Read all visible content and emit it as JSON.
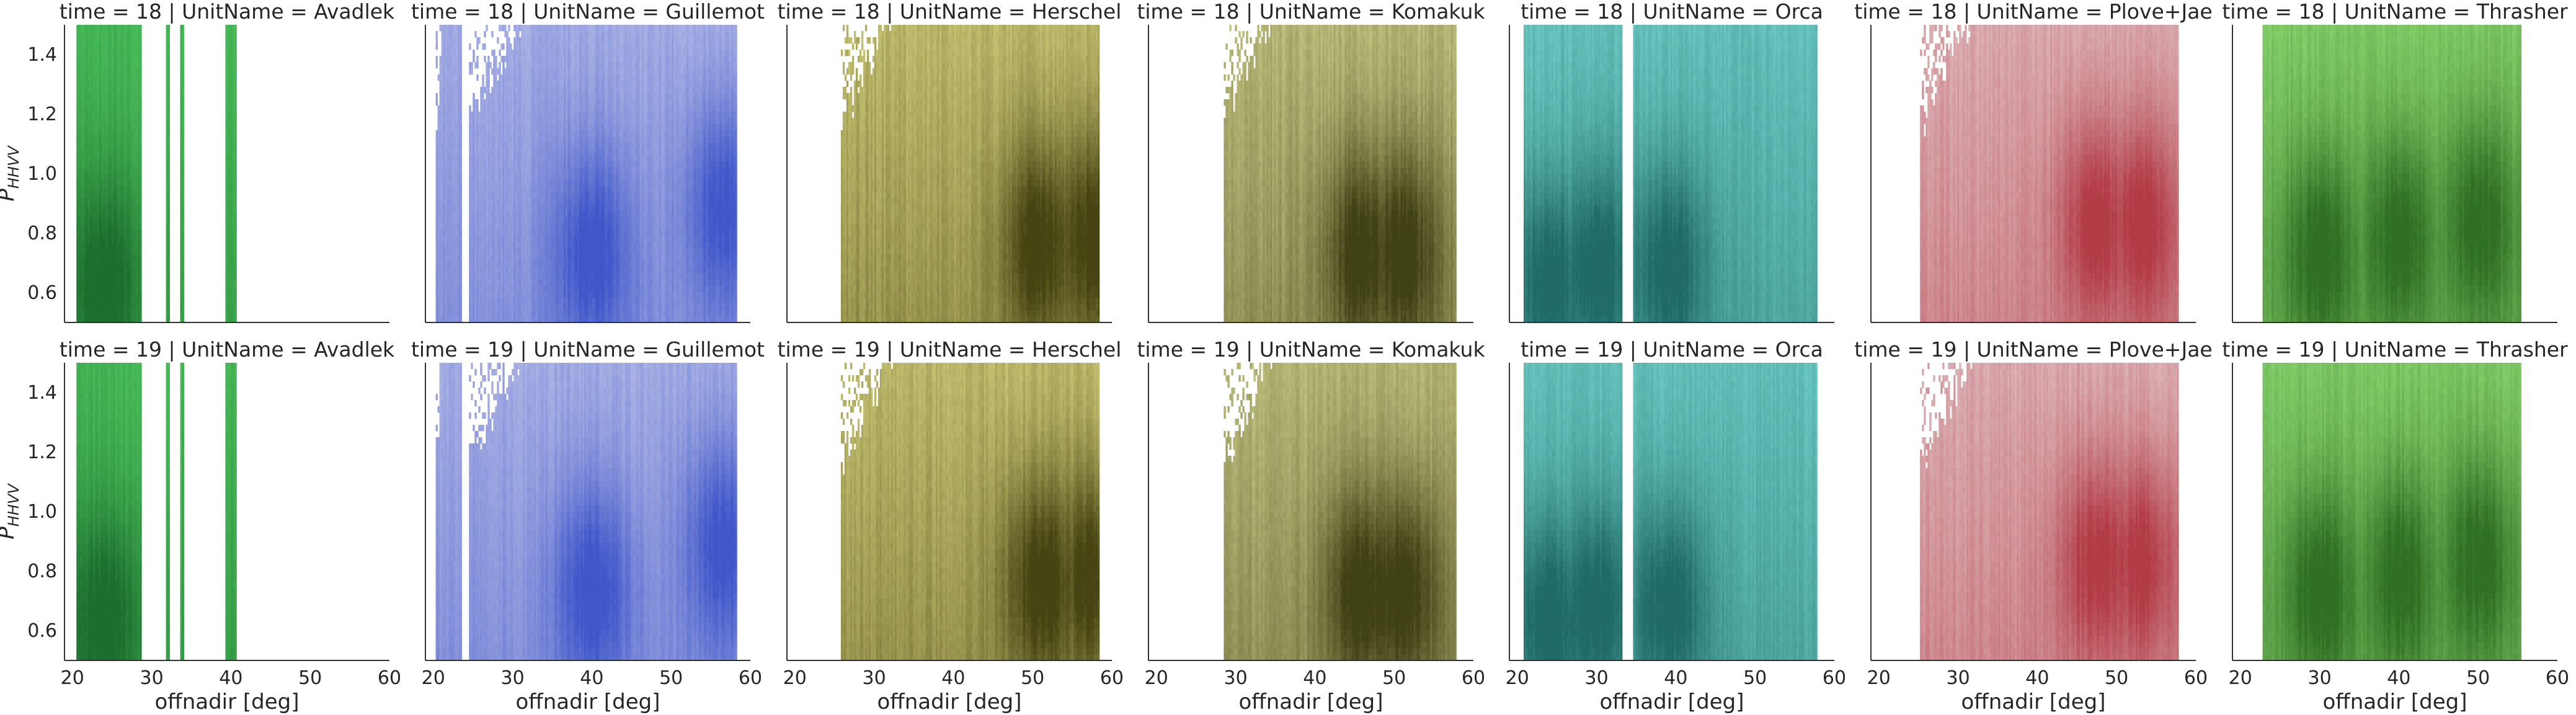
{
  "chart_data": {
    "type": "heatmap",
    "rows": [
      18,
      19
    ],
    "columns": [
      "Avadlek",
      "Guillemot",
      "Herschel",
      "Komakuk",
      "Orca",
      "Plove+Jae",
      "Thrasher"
    ],
    "panel_titles": [
      [
        "time = 18 | UnitName = Avadlek",
        "time = 18 | UnitName = Guillemot",
        "time = 18 | UnitName = Herschel",
        "time = 18 | UnitName = Komakuk",
        "time = 18 | UnitName = Orca",
        "time = 18 | UnitName = Plove+Jae",
        "time = 18 | UnitName = Thrasher"
      ],
      [
        "time = 19 | UnitName = Avadlek",
        "time = 19 | UnitName = Guillemot",
        "time = 19 | UnitName = Herschel",
        "time = 19 | UnitName = Komakuk",
        "time = 19 | UnitName = Orca",
        "time = 19 | UnitName = Plove+Jae",
        "time = 19 | UnitName = Thrasher"
      ]
    ],
    "xlabel": "offnadir [deg]",
    "ylabel": "P",
    "ylabel_subscript": "HHVV",
    "xlim": [
      19,
      60
    ],
    "ylim": [
      0.5,
      1.5
    ],
    "xticks": [
      20,
      30,
      40,
      50,
      60
    ],
    "yticks": [
      0.6,
      0.8,
      1.0,
      1.2,
      1.4
    ],
    "xtick_labels": [
      "20",
      "30",
      "40",
      "50",
      "60"
    ],
    "ytick_labels": [
      "0.6",
      "0.8",
      "1.0",
      "1.2",
      "1.4"
    ],
    "grid": false,
    "series": [
      {
        "name": "Avadlek",
        "color": "#4cc25c",
        "dark": "#1a6a2c",
        "coverage": [
          [
            20.5,
            28.5
          ],
          [
            31.8,
            32.2
          ],
          [
            33.6,
            34.0
          ],
          [
            39.3,
            40.7
          ]
        ],
        "density_peaks": [
          [
            24,
            0.65
          ]
        ],
        "sparse_top": false
      },
      {
        "name": "Guillemot",
        "color": "#b3b9e6",
        "dark": "#3a52c8",
        "coverage": [
          [
            20.3,
            23.5
          ],
          [
            24.5,
            58.2
          ]
        ],
        "density_peaks": [
          [
            56.5,
            0.9
          ],
          [
            40,
            0.75
          ]
        ],
        "sparse_top": true
      },
      {
        "name": "Herschel",
        "color": "#d0cc7a",
        "dark": "#3f3d0c",
        "coverage": [
          [
            25.8,
            58.2
          ]
        ],
        "density_peaks": [
          [
            57.5,
            0.8
          ],
          [
            51,
            0.78
          ]
        ],
        "sparse_top": true
      },
      {
        "name": "Komakuk",
        "color": "#c9ca86",
        "dark": "#3a3a10",
        "coverage": [
          [
            28.5,
            57.8
          ]
        ],
        "density_peaks": [
          [
            51,
            0.75
          ],
          [
            46,
            0.75
          ]
        ],
        "sparse_top": true
      },
      {
        "name": "Orca",
        "color": "#6fcec8",
        "dark": "#1c6662",
        "coverage": [
          [
            20.8,
            33.2
          ],
          [
            34.6,
            57.8
          ]
        ],
        "density_peaks": [
          [
            24,
            0.65
          ],
          [
            30,
            0.7
          ],
          [
            39,
            0.7
          ]
        ],
        "sparse_top": false
      },
      {
        "name": "Plove+Jae",
        "color": "#dfbcbf",
        "dark": "#b03540",
        "coverage": [
          [
            25.2,
            57.8
          ]
        ],
        "density_peaks": [
          [
            47.5,
            0.85
          ],
          [
            53,
            0.85
          ]
        ],
        "sparse_top": true
      },
      {
        "name": "Thrasher",
        "color": "#8cd870",
        "dark": "#2c6a20",
        "coverage": [
          [
            22.8,
            55.2
          ]
        ],
        "density_peaks": [
          [
            50,
            0.85
          ],
          [
            40,
            0.8
          ],
          [
            30,
            0.75
          ]
        ],
        "sparse_top": false
      }
    ]
  }
}
